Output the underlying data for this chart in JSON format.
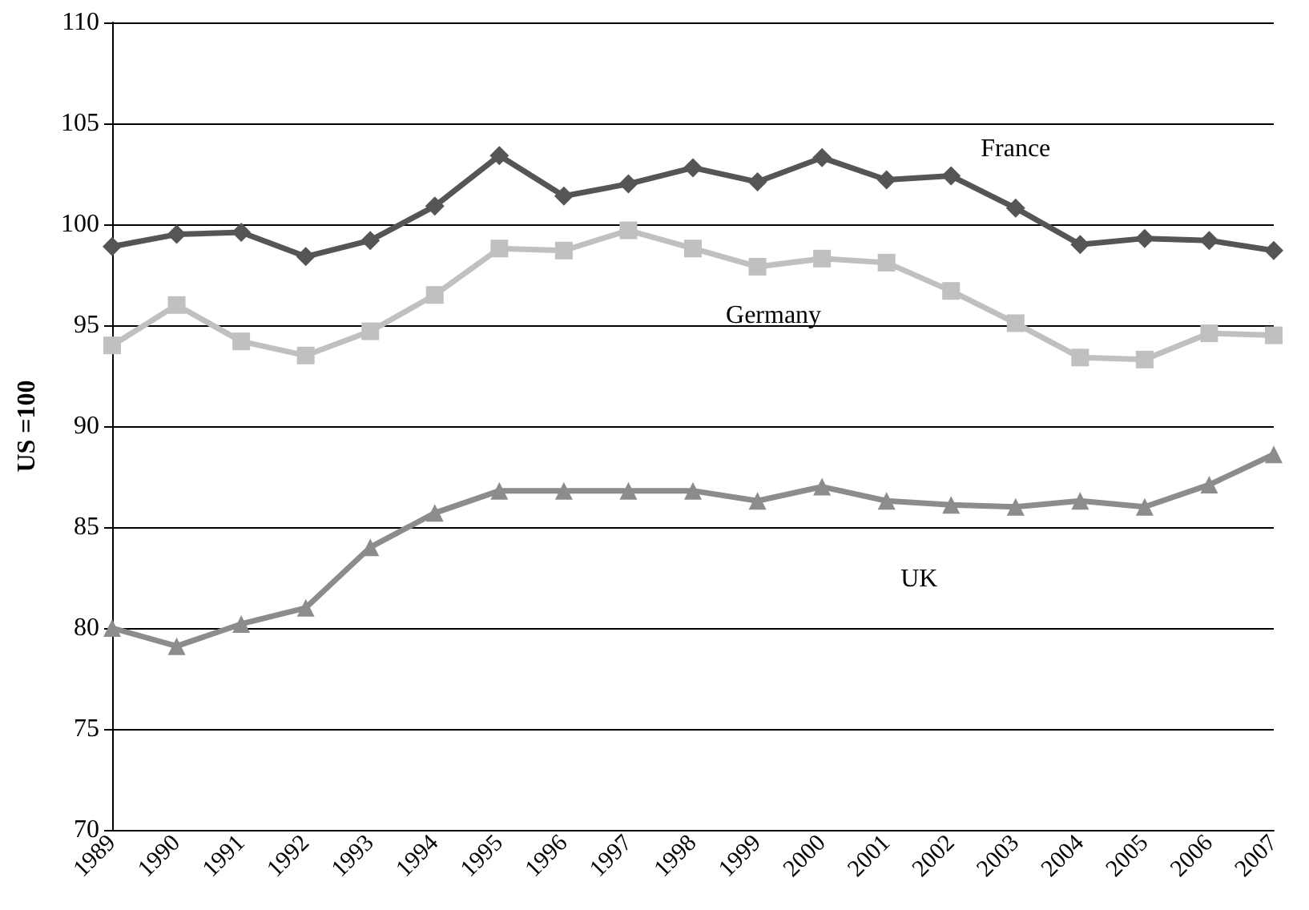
{
  "chart_data": {
    "type": "line",
    "ylabel": "US =100",
    "categories": [
      "1989",
      "1990",
      "1991",
      "1992",
      "1993",
      "1994",
      "1995",
      "1996",
      "1997",
      "1998",
      "1999",
      "2000",
      "2001",
      "2002",
      "2003",
      "2004",
      "2005",
      "2006",
      "2007"
    ],
    "series": [
      {
        "name": "France",
        "color": "#555555",
        "marker": "diamond",
        "values": [
          98.9,
          99.5,
          99.6,
          98.4,
          99.2,
          100.9,
          103.4,
          101.4,
          102.0,
          102.8,
          102.1,
          103.3,
          102.2,
          102.4,
          100.8,
          99.0,
          99.3,
          99.2,
          98.7
        ]
      },
      {
        "name": "Germany",
        "color": "#c0c0c0",
        "marker": "square",
        "values": [
          94.0,
          96.0,
          94.2,
          93.5,
          94.7,
          96.5,
          98.8,
          98.7,
          99.7,
          98.8,
          97.9,
          98.3,
          98.1,
          96.7,
          95.1,
          93.4,
          93.3,
          94.6,
          94.5
        ]
      },
      {
        "name": "UK",
        "color": "#8c8c8c",
        "marker": "triangle",
        "values": [
          80.0,
          79.1,
          80.2,
          81.0,
          84.0,
          85.7,
          86.8,
          86.8,
          86.8,
          86.8,
          86.3,
          87.0,
          86.3,
          86.1,
          86.0,
          86.3,
          86.0,
          87.1,
          88.6
        ]
      }
    ],
    "ylim": [
      70,
      110
    ],
    "yticks": [
      70,
      75,
      80,
      85,
      90,
      95,
      100,
      105,
      110
    ],
    "grid": "y",
    "legend": false,
    "line_style": "solid"
  }
}
